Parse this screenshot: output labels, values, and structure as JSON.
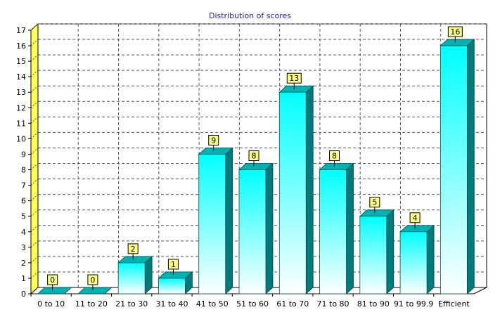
{
  "chart_data": {
    "type": "bar",
    "title": "Distribution of scores",
    "xlabel": "",
    "ylabel": "",
    "categories": [
      "0 to 10",
      "11 to 20",
      "21 to 30",
      "31 to 40",
      "41 to 50",
      "51 to 60",
      "61 to 70",
      "71 to 80",
      "81 to 90",
      "91 to 99.9",
      "Efficient"
    ],
    "values": [
      0,
      0,
      2,
      1,
      9,
      8,
      13,
      8,
      5,
      4,
      16
    ],
    "ylim": [
      0,
      17
    ],
    "yticks": [
      0,
      1,
      2,
      3,
      4,
      5,
      6,
      7,
      8,
      9,
      10,
      11,
      12,
      13,
      14,
      15,
      16,
      17
    ],
    "grid": true,
    "colors": {
      "bar_top": "#00ffff",
      "bar_bottom": "#ffffff",
      "bar_side": "#007a7a",
      "bar_cap": "#00b3b3",
      "label_bg": "#ffff80",
      "wall": "#ffff55",
      "title": "#1a1aa6"
    }
  }
}
